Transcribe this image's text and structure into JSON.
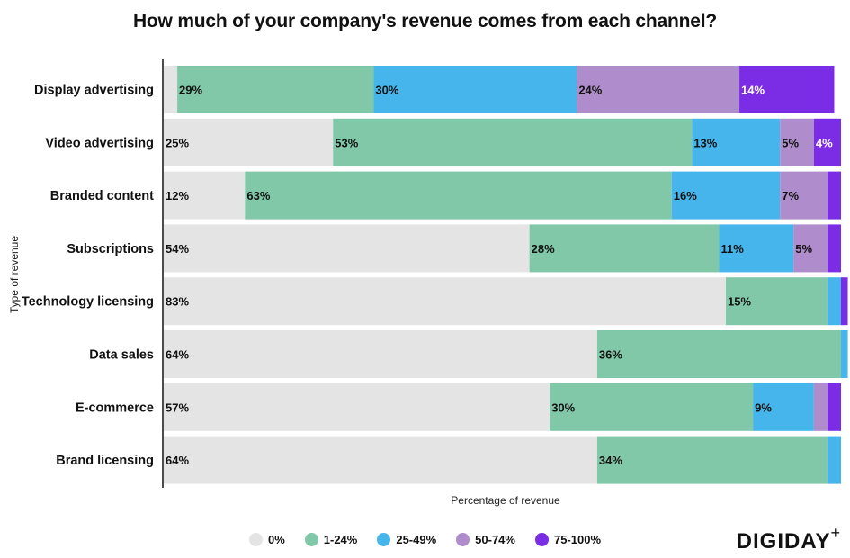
{
  "chart_data": {
    "type": "bar",
    "orientation": "horizontal",
    "stacked": true,
    "title": "How much of your company's revenue comes from each channel?",
    "xlabel": "Percentage of revenue",
    "ylabel": "Type of revenue",
    "xlim": [
      0,
      100
    ],
    "categories": [
      "Display advertising",
      "Video advertising",
      "Branded content",
      "Subscriptions",
      "Technology licensing",
      "Data sales",
      "E-commerce",
      "Brand licensing"
    ],
    "series": [
      {
        "name": "0%",
        "color": "#e4e4e4",
        "values": [
          2,
          25,
          12,
          54,
          83,
          64,
          57,
          64
        ],
        "labels": [
          "",
          "25%",
          "12%",
          "54%",
          "83%",
          "64%",
          "57%",
          "64%"
        ]
      },
      {
        "name": "1-24%",
        "color": "#80c8a8",
        "values": [
          29,
          53,
          63,
          28,
          15,
          36,
          30,
          34
        ],
        "labels": [
          "29%",
          "53%",
          "63%",
          "28%",
          "15%",
          "36%",
          "30%",
          "34%"
        ]
      },
      {
        "name": "25-49%",
        "color": "#45b5eb",
        "values": [
          30,
          13,
          16,
          11,
          2,
          1,
          9,
          2
        ],
        "labels": [
          "30%",
          "13%",
          "16%",
          "11%",
          "",
          "",
          "9%",
          ""
        ]
      },
      {
        "name": "50-74%",
        "color": "#af8ccb",
        "values": [
          24,
          5,
          7,
          5,
          0,
          0,
          2,
          0
        ],
        "labels": [
          "24%",
          "5%",
          "7%",
          "5%",
          "",
          "",
          "",
          ""
        ]
      },
      {
        "name": "75-100%",
        "color": "#7b2de6",
        "values": [
          14,
          4,
          2,
          2,
          1,
          0,
          2,
          0
        ],
        "labels": [
          "14%",
          "4%",
          "",
          "",
          "",
          "",
          "",
          ""
        ]
      }
    ],
    "legend_position": "bottom"
  },
  "brand": {
    "name": "DIGIDAY",
    "mark": "+"
  }
}
